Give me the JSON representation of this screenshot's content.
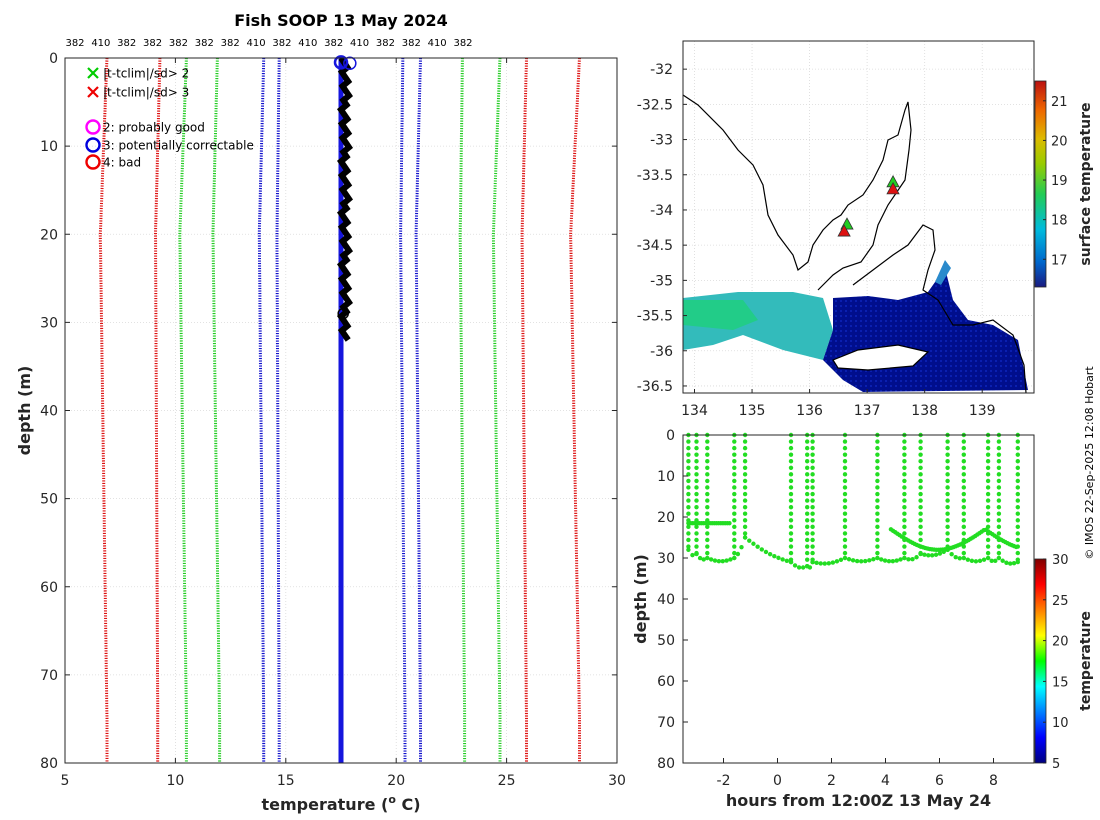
{
  "title": "Fish SOOP 13 May 2024",
  "copyright": "© IMOS 22-Sep-2025 12:08 Hobart",
  "chart_data": [
    {
      "type": "line",
      "panel": "profile",
      "xlabel": "temperature (",
      "xlabel_sup": "o",
      "xlabel_end": " C)",
      "ylabel": "depth (m)",
      "xlim": [
        5,
        30
      ],
      "ylim": [
        80,
        0
      ],
      "xticks": [
        5,
        10,
        15,
        20,
        25,
        30
      ],
      "yticks": [
        0,
        10,
        20,
        30,
        40,
        50,
        60,
        70,
        80
      ],
      "top_labels": [
        "382",
        "410",
        "382",
        "382",
        "382",
        "382",
        "382",
        "410",
        "382",
        "410",
        "382",
        "410",
        "382",
        "382",
        "410",
        "382"
      ],
      "legend": [
        {
          "label": "|t-tclim|/sd> 2",
          "color": "#00cc00",
          "marker": "x"
        },
        {
          "label": "|t-tclim|/sd> 3",
          "color": "#ee0000",
          "marker": "x"
        },
        {
          "label": "2: probably good",
          "color": "#ff00ff",
          "marker": "o"
        },
        {
          "label": "3: potentially correctable",
          "color": "#0000dd",
          "marker": "o"
        },
        {
          "label": "4: bad",
          "color": "#ee0000",
          "marker": "o"
        }
      ],
      "climatology_lines": [
        {
          "name": "red-outer-left",
          "color": "#dd1111",
          "top": 6.9,
          "mid": 6.6,
          "bottom": 6.9
        },
        {
          "name": "red-inner-left",
          "color": "#dd1111",
          "top": 9.3,
          "mid": 9.1,
          "bottom": 9.2
        },
        {
          "name": "green-left-1",
          "color": "#22cc22",
          "top": 10.5,
          "mid": 10.2,
          "bottom": 10.5
        },
        {
          "name": "green-left-2",
          "color": "#22cc22",
          "top": 11.9,
          "mid": 11.7,
          "bottom": 12.0
        },
        {
          "name": "blue-left-1",
          "color": "#1111cc",
          "top": 14.0,
          "mid": 13.8,
          "bottom": 14.0
        },
        {
          "name": "blue-left-2",
          "color": "#1111cc",
          "top": 14.7,
          "mid": 14.6,
          "bottom": 14.7
        },
        {
          "name": "blue-right-1",
          "color": "#1111cc",
          "top": 20.3,
          "mid": 20.2,
          "bottom": 20.4
        },
        {
          "name": "blue-right-2",
          "color": "#1111cc",
          "top": 21.1,
          "mid": 20.9,
          "bottom": 21.1
        },
        {
          "name": "green-right-1",
          "color": "#22cc22",
          "top": 23.0,
          "mid": 22.9,
          "bottom": 23.1
        },
        {
          "name": "green-right-2",
          "color": "#22cc22",
          "top": 24.7,
          "mid": 24.4,
          "bottom": 24.7
        },
        {
          "name": "red-right-1",
          "color": "#dd1111",
          "top": 25.9,
          "mid": 25.7,
          "bottom": 25.9
        },
        {
          "name": "red-right-2",
          "color": "#dd1111",
          "top": 28.3,
          "mid": 27.9,
          "bottom": 28.3
        }
      ],
      "profile_blue": {
        "x": 17.5,
        "depth_range": [
          0,
          80
        ]
      },
      "profile_black": {
        "x_range": [
          17.5,
          17.9
        ],
        "depth_range": [
          0,
          32
        ]
      }
    },
    {
      "type": "heatmap",
      "panel": "map",
      "colorbar_label": "surface temperature",
      "xlim": [
        133.8,
        139.9
      ],
      "ylim": [
        -36.6,
        -31.6
      ],
      "xticks": [
        134,
        135,
        136,
        137,
        138,
        139
      ],
      "yticks": [
        -32,
        -32.5,
        -33,
        -33.5,
        -34,
        -34.5,
        -35,
        -35.5,
        -36,
        -36.5
      ],
      "yticklabels": [
        "-32",
        "-32.5",
        "-33",
        "-33.5",
        "-34",
        "-34.5",
        "-35",
        "-35.5",
        "-36",
        "-36.5"
      ],
      "colorbar_range": [
        16.3,
        21.5
      ],
      "colorbar_ticks": [
        17,
        18,
        19,
        20,
        21
      ],
      "stations": [
        {
          "lon": 136.65,
          "lat": -34.2,
          "color": "#22cc22"
        },
        {
          "lon": 136.6,
          "lat": -34.3,
          "color": "#dd1111"
        },
        {
          "lon": 137.45,
          "lat": -33.6,
          "color": "#22cc22"
        },
        {
          "lon": 137.45,
          "lat": -33.7,
          "color": "#dd1111"
        }
      ]
    },
    {
      "type": "scatter",
      "panel": "time-depth",
      "xlabel": "hours from 12:00Z 13 May 24",
      "ylabel": "depth (m)",
      "colorbar_label": "temperature",
      "xlim": [
        -3.5,
        9.5
      ],
      "ylim": [
        80,
        0
      ],
      "xticks": [
        -2,
        0,
        2,
        4,
        6,
        8
      ],
      "yticks": [
        0,
        10,
        20,
        30,
        40,
        50,
        60,
        70,
        80
      ],
      "colorbar_range": [
        5,
        30
      ],
      "colorbar_ticks": [
        5,
        10,
        15,
        20,
        25,
        30
      ],
      "point_color": "#22dd22",
      "casts": [
        {
          "t": -3.3,
          "bottom": 28
        },
        {
          "t": -3.0,
          "bottom": 29
        },
        {
          "t": -2.6,
          "bottom": 30
        },
        {
          "t": -1.6,
          "bottom": 30
        },
        {
          "t": -1.2,
          "bottom": 25
        },
        {
          "t": 0.5,
          "bottom": 31
        },
        {
          "t": 1.1,
          "bottom": 32
        },
        {
          "t": 1.3,
          "bottom": 31
        },
        {
          "t": 2.5,
          "bottom": 30
        },
        {
          "t": 3.7,
          "bottom": 30
        },
        {
          "t": 4.7,
          "bottom": 30
        },
        {
          "t": 5.3,
          "bottom": 29
        },
        {
          "t": 6.3,
          "bottom": 28
        },
        {
          "t": 6.9,
          "bottom": 30
        },
        {
          "t": 7.8,
          "bottom": 30
        },
        {
          "t": 8.2,
          "bottom": 30
        },
        {
          "t": 8.9,
          "bottom": 31
        }
      ]
    }
  ]
}
